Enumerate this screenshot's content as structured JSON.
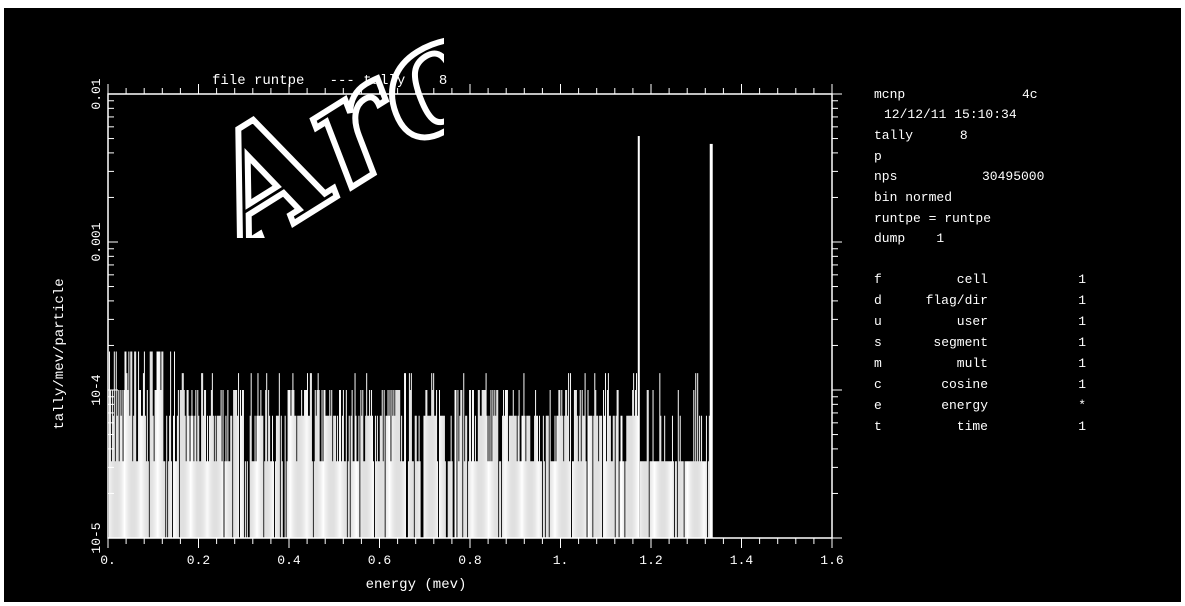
{
  "chart_data": {
    "type": "bar",
    "title": "file runtpe   --- tally    8",
    "xlabel": "energy (mev)",
    "ylabel": "tally/mev/particle",
    "x_scale": "linear",
    "y_scale": "log",
    "xlim": [
      0,
      1.6
    ],
    "ylim": [
      1e-05,
      0.01
    ],
    "x_ticks": [
      {
        "value": 0.0,
        "label": "0."
      },
      {
        "value": 0.2,
        "label": "0.2"
      },
      {
        "value": 0.4,
        "label": "0.4"
      },
      {
        "value": 0.6,
        "label": "0.6"
      },
      {
        "value": 0.8,
        "label": "0.8"
      },
      {
        "value": 1.0,
        "label": "1."
      },
      {
        "value": 1.2,
        "label": "1.2"
      },
      {
        "value": 1.4,
        "label": "1.4"
      },
      {
        "value": 1.6,
        "label": "1.6"
      }
    ],
    "y_ticks": [
      {
        "value": 0.01,
        "label": "0.01"
      },
      {
        "value": 0.001,
        "label": "0.001"
      },
      {
        "value": 0.0001,
        "label": "10-4"
      },
      {
        "value": 1e-05,
        "label": "10-5"
      }
    ],
    "grid": false,
    "color": "#ffffff",
    "peaks": [
      {
        "energy": 1.173,
        "value": 0.0052
      },
      {
        "energy": 1.332,
        "value": 0.0046
      }
    ],
    "continuum": {
      "energy_range": [
        0.0,
        1.33
      ],
      "typical_values": [
        3.3e-05,
        6.7e-05,
        0.0001,
        0.00013
      ],
      "max_value": 0.00027
    }
  },
  "info": {
    "code": "mcnp",
    "version": "4c",
    "datetime": "12/12/11 15:10:34",
    "tally": "tally      8",
    "particle": "p",
    "nps_label": "nps",
    "nps_value": "30495000",
    "bin": "bin normed",
    "runtpe": "runtpe = runtpe",
    "dump": "dump    1",
    "dimensions": [
      {
        "key": "f",
        "name": "cell",
        "value": "1"
      },
      {
        "key": "d",
        "name": "flag/dir",
        "value": "1"
      },
      {
        "key": "u",
        "name": "user",
        "value": "1"
      },
      {
        "key": "s",
        "name": "segment",
        "value": "1"
      },
      {
        "key": "m",
        "name": "mult",
        "value": "1"
      },
      {
        "key": "c",
        "name": "cosine",
        "value": "1"
      },
      {
        "key": "e",
        "name": "energy",
        "value": "*"
      },
      {
        "key": "t",
        "name": "time",
        "value": "1"
      }
    ]
  },
  "watermark": {
    "text": "Arc"
  }
}
